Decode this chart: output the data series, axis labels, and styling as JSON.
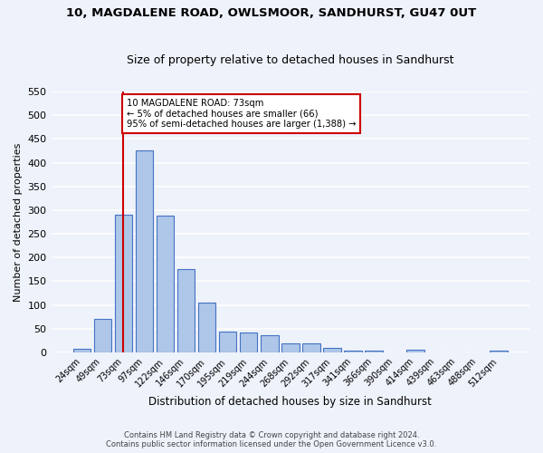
{
  "title": "10, MAGDALENE ROAD, OWLSMOOR, SANDHURST, GU47 0UT",
  "subtitle": "Size of property relative to detached houses in Sandhurst",
  "xlabel": "Distribution of detached houses by size in Sandhurst",
  "ylabel": "Number of detached properties",
  "bar_labels": [
    "24sqm",
    "49sqm",
    "73sqm",
    "97sqm",
    "122sqm",
    "146sqm",
    "170sqm",
    "195sqm",
    "219sqm",
    "244sqm",
    "268sqm",
    "292sqm",
    "317sqm",
    "341sqm",
    "366sqm",
    "390sqm",
    "414sqm",
    "439sqm",
    "463sqm",
    "488sqm",
    "512sqm"
  ],
  "bar_values": [
    8,
    70,
    290,
    425,
    288,
    175,
    105,
    43,
    42,
    36,
    18,
    18,
    9,
    4,
    4,
    0,
    5,
    0,
    0,
    0,
    4
  ],
  "bar_color": "#aec6e8",
  "bar_edge_color": "#4472c4",
  "highlight_index": 2,
  "highlight_line_color": "#cc0000",
  "annotation_line1": "10 MAGDALENE ROAD: 73sqm",
  "annotation_line2": "← 5% of detached houses are smaller (66)",
  "annotation_line3": "95% of semi-detached houses are larger (1,388) →",
  "annotation_box_color": "#ffffff",
  "annotation_box_edge_color": "#cc0000",
  "ylim": [
    0,
    550
  ],
  "yticks": [
    0,
    50,
    100,
    150,
    200,
    250,
    300,
    350,
    400,
    450,
    500,
    550
  ],
  "background_color": "#eef2fa",
  "grid_color": "#ffffff",
  "footer_line1": "Contains HM Land Registry data © Crown copyright and database right 2024.",
  "footer_line2": "Contains public sector information licensed under the Open Government Licence v3.0."
}
